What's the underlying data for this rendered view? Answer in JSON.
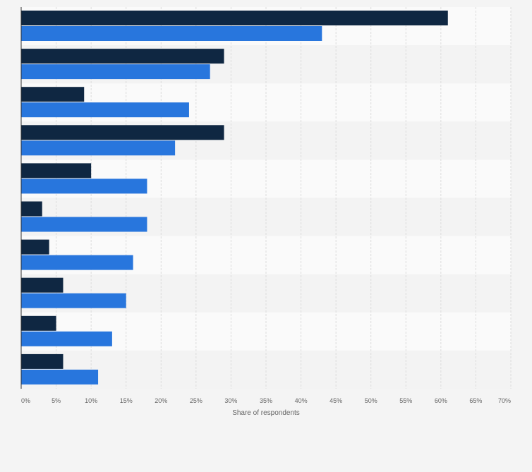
{
  "chart_data": {
    "type": "bar",
    "orientation": "horizontal",
    "categories": [
      "",
      "",
      "",
      "",
      "",
      "",
      "",
      "",
      "",
      ""
    ],
    "series": [
      {
        "values": [
          61,
          29,
          9,
          29,
          10,
          3,
          4,
          6,
          5,
          6
        ],
        "color": "#0f2742"
      },
      {
        "values": [
          43,
          27,
          24,
          22,
          18,
          18,
          16,
          15,
          13,
          11
        ],
        "color": "#2876dd"
      }
    ],
    "xlabel": "Share of respondents",
    "ylabel": "",
    "xlim": [
      0,
      70
    ],
    "ticks": [
      "0%",
      "5%",
      "10%",
      "15%",
      "20%",
      "25%",
      "30%",
      "35%",
      "40%",
      "45%",
      "50%",
      "55%",
      "60%",
      "65%",
      "70%"
    ],
    "grid": true,
    "legend": "none"
  },
  "colors": {
    "background": "#f4f4f4",
    "band_odd": "#fafafa",
    "band_even": "#f3f3f3",
    "grid": "#dcdcdc",
    "axis": "#333333",
    "tick_text": "#666666"
  }
}
